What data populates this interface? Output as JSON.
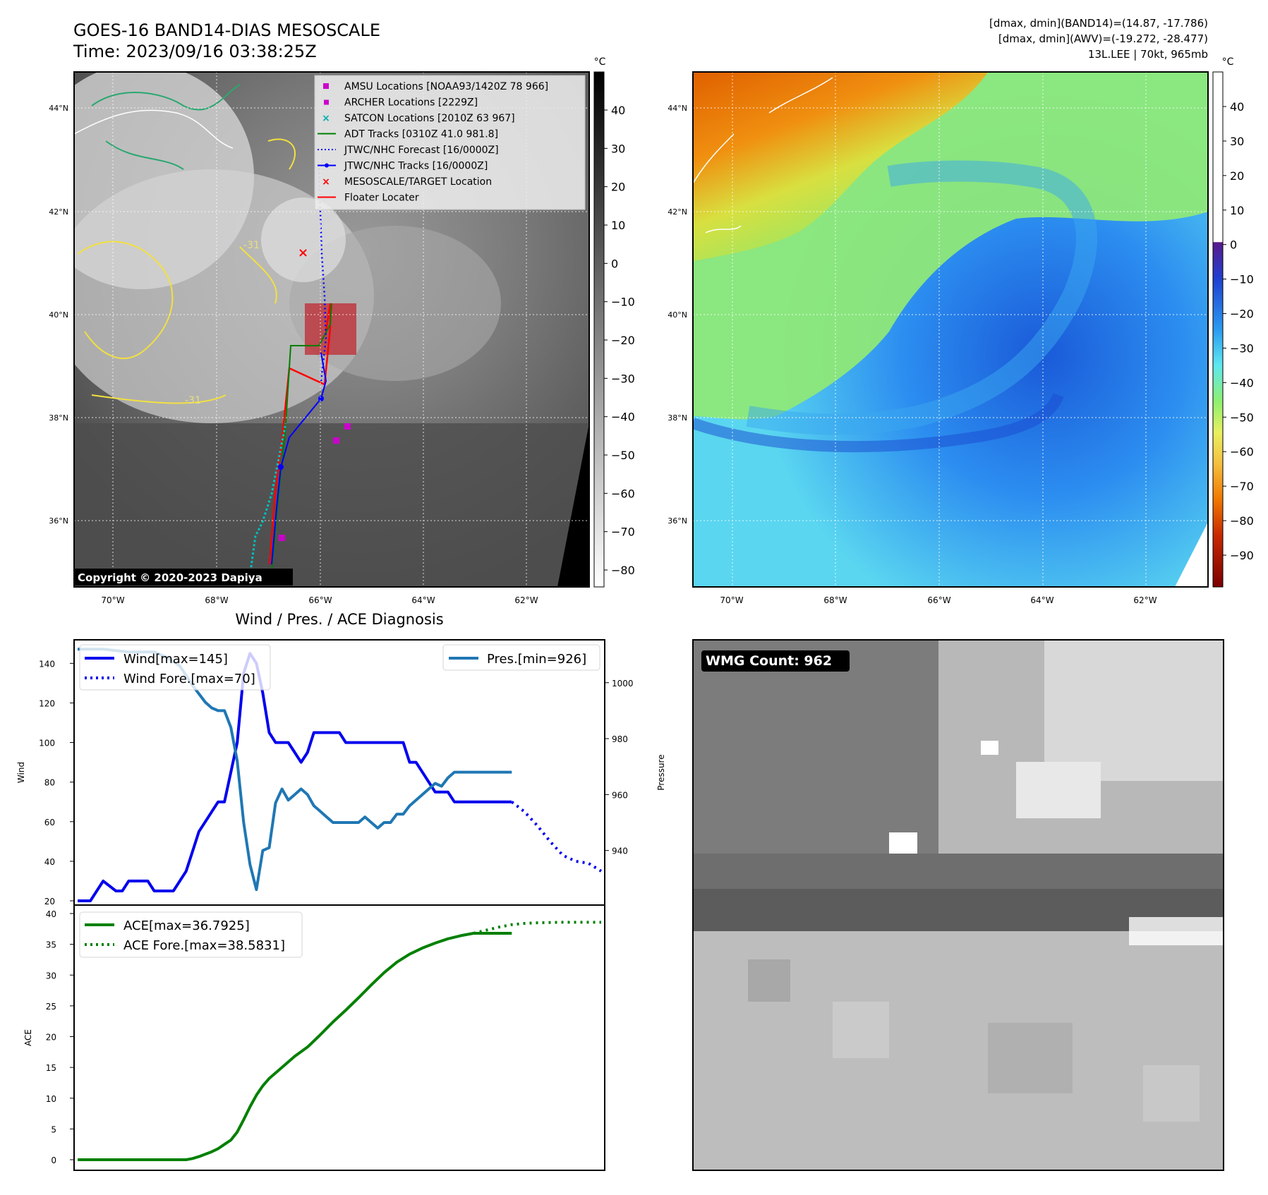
{
  "header": {
    "title_line1": "GOES-16 BAND14-DIAS MESOSCALE",
    "title_line2": "Time: 2023/09/16 03:38:25Z",
    "meta_line1": "[dmax, dmin](BAND14)=(14.87, -17.786)",
    "meta_line2": "[dmax, dmin](AWV)=(-19.272, -28.477)",
    "meta_line3": "13L.LEE | 70kt, 965mb"
  },
  "map_axes": {
    "lon_ticks": [
      "70°W",
      "68°W",
      "66°W",
      "64°W",
      "62°W"
    ],
    "lat_ticks": [
      "44°N",
      "42°N",
      "40°N",
      "38°N",
      "36°N"
    ]
  },
  "ir_panel": {
    "copyright": "Copyright © 2020-2023 Dapiya",
    "colorbar_unit": "°C",
    "colorbar_ticks": [
      "40",
      "30",
      "20",
      "10",
      "0",
      "−10",
      "−20",
      "−30",
      "−40",
      "−50",
      "−60",
      "−70",
      "−80"
    ],
    "contour_label": "-31",
    "legend": [
      {
        "label": "AMSU Locations [NOAA93/1420Z 78 966]",
        "color": "#cc00cc",
        "marker": "square"
      },
      {
        "label": "ARCHER Locations [2229Z]",
        "color": "#cc00cc",
        "marker": "square-small"
      },
      {
        "label": "SATCON Locations [2010Z 63 967]",
        "color": "#00b0b0",
        "marker": "x"
      },
      {
        "label": "ADT Tracks [0310Z 41.0 981.8]",
        "color": "#008000",
        "marker": "line"
      },
      {
        "label": "JTWC/NHC Forecast [16/0000Z]",
        "color": "#0000ff",
        "marker": "dotted"
      },
      {
        "label": "JTWC/NHC Tracks [16/0000Z]",
        "color": "#0000ff",
        "marker": "line-dot"
      },
      {
        "label": "MESOSCALE/TARGET Location",
        "color": "#ff0000",
        "marker": "x"
      },
      {
        "label": "Floater Locater",
        "color": "#ff0000",
        "marker": "line"
      }
    ]
  },
  "wv_panel": {
    "colorbar_unit": "°C",
    "colorbar_ticks": [
      "40",
      "30",
      "20",
      "10",
      "0",
      "−10",
      "−20",
      "−30",
      "−40",
      "−50",
      "−60",
      "−70",
      "−80",
      "−90"
    ]
  },
  "wmg_panel": {
    "badge": "WMG Count: 962"
  },
  "chart_data": [
    {
      "type": "line",
      "title": "Wind / Pres. / ACE Diagnosis",
      "ylabel": "Wind",
      "ylabel_right": "Pressure",
      "ylim": [
        20,
        150
      ],
      "ylim_right": [
        922,
        1014
      ],
      "y_ticks": [
        "20",
        "40",
        "60",
        "80",
        "100",
        "120",
        "140"
      ],
      "y_ticks_right": [
        "940",
        "960",
        "980",
        "1000"
      ],
      "series": [
        {
          "name": "Wind[max=145]",
          "color": "#0000ee",
          "style": "solid",
          "x": [
            0,
            2,
            4,
            6,
            7,
            8,
            9,
            10,
            11,
            12,
            13,
            14,
            15,
            16,
            17,
            18,
            19,
            20,
            21,
            22,
            23,
            24,
            25,
            26,
            27,
            28,
            29,
            30,
            31,
            32,
            33,
            34,
            35,
            36,
            37,
            38,
            39,
            40,
            41,
            42,
            43,
            44,
            45,
            46,
            47,
            48,
            49,
            50,
            51,
            52,
            53,
            54,
            55,
            56,
            57,
            58,
            59,
            60,
            61,
            62,
            63,
            64,
            65,
            66,
            67,
            68
          ],
          "values": [
            20,
            20,
            30,
            25,
            25,
            30,
            30,
            30,
            30,
            25,
            25,
            25,
            25,
            30,
            35,
            45,
            55,
            60,
            65,
            70,
            70,
            85,
            100,
            135,
            145,
            140,
            125,
            105,
            100,
            100,
            100,
            95,
            90,
            95,
            105,
            105,
            105,
            105,
            105,
            100,
            100,
            100,
            100,
            100,
            100,
            100,
            100,
            100,
            100,
            90,
            90,
            85,
            80,
            75,
            75,
            75,
            70,
            70,
            70,
            70,
            70,
            70,
            70,
            70,
            70,
            70
          ]
        },
        {
          "name": "Wind Fore.[max=70]",
          "color": "#0000ee",
          "style": "dotted",
          "x": [
            68,
            70,
            72,
            74,
            76,
            78,
            80,
            82
          ],
          "values": [
            70,
            65,
            58,
            50,
            43,
            40,
            39,
            35
          ]
        },
        {
          "name": "Pres.[min=926]",
          "color": "#1f77b4",
          "style": "solid",
          "axis": "right",
          "x": [
            0,
            4,
            8,
            12,
            14,
            16,
            18,
            20,
            21,
            22,
            23,
            24,
            25,
            26,
            27,
            28,
            29,
            30,
            31,
            32,
            33,
            34,
            35,
            36,
            37,
            38,
            39,
            40,
            41,
            42,
            43,
            44,
            45,
            46,
            47,
            48,
            49,
            50,
            51,
            52,
            53,
            54,
            55,
            56,
            57,
            58,
            59,
            60,
            61,
            62,
            63,
            64,
            65,
            66,
            67,
            68
          ],
          "values": [
            1012,
            1012,
            1011,
            1011,
            1009,
            1006,
            999,
            993,
            991,
            990,
            990,
            984,
            972,
            950,
            935,
            926,
            940,
            941,
            957,
            962,
            958,
            960,
            962,
            960,
            956,
            954,
            952,
            950,
            950,
            950,
            950,
            950,
            952,
            950,
            948,
            950,
            950,
            953,
            953,
            956,
            958,
            960,
            962,
            964,
            963,
            966,
            968,
            968,
            968,
            968,
            968,
            968,
            968,
            968,
            968,
            968
          ]
        }
      ]
    },
    {
      "type": "line",
      "ylabel": "ACE",
      "ylim": [
        0,
        40
      ],
      "y_ticks": [
        "0",
        "5",
        "10",
        "15",
        "20",
        "25",
        "30",
        "35",
        "40"
      ],
      "series": [
        {
          "name": "ACE[max=36.7925]",
          "color": "#008000",
          "style": "solid",
          "x": [
            0,
            5,
            10,
            15,
            17,
            18,
            19,
            20,
            21,
            22,
            23,
            24,
            25,
            26,
            27,
            28,
            29,
            30,
            32,
            34,
            36,
            38,
            40,
            42,
            44,
            46,
            48,
            50,
            52,
            54,
            56,
            58,
            60,
            62,
            64,
            66,
            68
          ],
          "values": [
            0,
            0,
            0,
            0,
            0,
            0.2,
            0.5,
            0.9,
            1.3,
            1.8,
            2.5,
            3.2,
            4.5,
            6.5,
            8.6,
            10.5,
            12,
            13.2,
            15,
            16.8,
            18.3,
            20.3,
            22.4,
            24.3,
            26.3,
            28.4,
            30.4,
            32.1,
            33.4,
            34.4,
            35.2,
            35.9,
            36.4,
            36.79,
            36.79,
            36.79,
            36.79
          ]
        },
        {
          "name": "ACE Fore.[max=38.5831]",
          "color": "#008000",
          "style": "dotted",
          "x": [
            62,
            64,
            66,
            68,
            70,
            72,
            74,
            76,
            78,
            80,
            82
          ],
          "values": [
            36.79,
            37.3,
            37.8,
            38.2,
            38.4,
            38.5,
            38.55,
            38.58,
            38.58,
            38.58,
            38.58
          ]
        }
      ]
    }
  ]
}
